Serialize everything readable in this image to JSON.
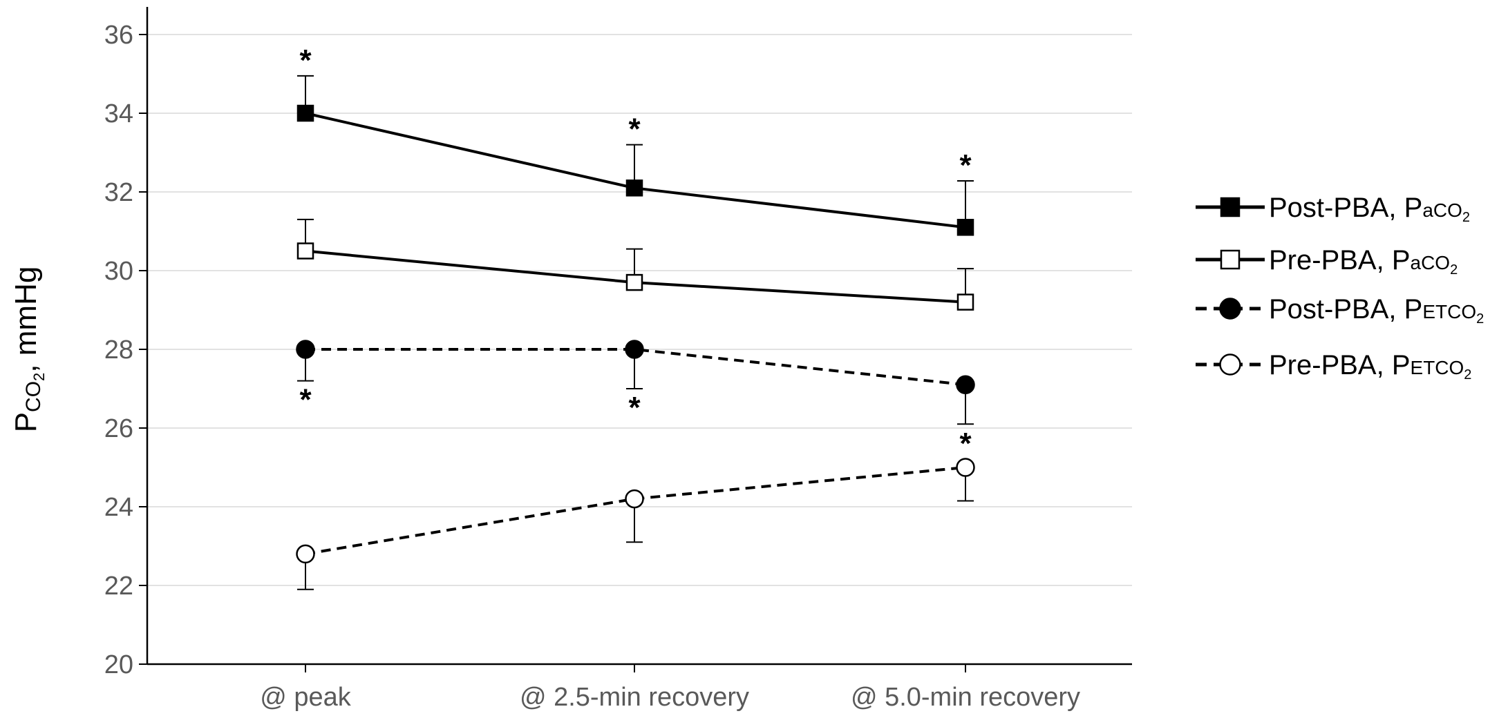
{
  "chart_data": {
    "type": "line",
    "ylabel": {
      "main": "P",
      "sub": "CO",
      "subsub": "2",
      "rest": ", mmHg"
    },
    "ylim": [
      20,
      36
    ],
    "yticks": [
      20,
      22,
      24,
      26,
      28,
      30,
      32,
      34,
      36
    ],
    "grid": true,
    "legend_position": "right",
    "categories": [
      "@ peak",
      "@ 2.5-min recovery",
      "@ 5.0-min recovery"
    ],
    "series": [
      {
        "name": "Post-PBA, PaCO2",
        "legend": {
          "main": "Post-PBA, P",
          "sub": "aCO",
          "subsub": "2"
        },
        "marker": "square",
        "filled": true,
        "dashed": false,
        "values": [
          34.0,
          32.1,
          31.1
        ],
        "errors": [
          0.95,
          1.1,
          1.18
        ],
        "error_dir": "up",
        "significance": [
          "*",
          "*",
          "*"
        ],
        "sig_pos": "above"
      },
      {
        "name": "Pre-PBA, PaCO2",
        "legend": {
          "main": "Pre-PBA, P",
          "sub": "aCO",
          "subsub": "2"
        },
        "marker": "square",
        "filled": false,
        "dashed": false,
        "values": [
          30.5,
          29.7,
          29.2
        ],
        "errors": [
          0.8,
          0.85,
          0.85
        ],
        "error_dir": "up",
        "significance": [
          "",
          "",
          ""
        ],
        "sig_pos": "above"
      },
      {
        "name": "Post-PBA, PETCO2",
        "legend": {
          "main": "Post-PBA, P",
          "sub": "ETCO",
          "subsub": "2"
        },
        "marker": "circle",
        "filled": true,
        "dashed": true,
        "values": [
          28.0,
          28.0,
          27.1
        ],
        "errors": [
          0.8,
          1.0,
          1.0
        ],
        "error_dir": "down",
        "significance": [
          "*",
          "*",
          ""
        ],
        "sig_pos": "below"
      },
      {
        "name": "Pre-PBA, PETCO2",
        "legend": {
          "main": "Pre-PBA, P",
          "sub": "ETCO",
          "subsub": "2"
        },
        "marker": "circle",
        "filled": false,
        "dashed": true,
        "values": [
          22.8,
          24.2,
          25.0
        ],
        "errors": [
          0.9,
          1.1,
          0.85
        ],
        "error_dir": "down",
        "significance": [
          "",
          "",
          "*"
        ],
        "sig_pos": "above"
      }
    ]
  },
  "colors": {
    "line": "#000000",
    "grid": "#d9d9d9",
    "axis": "#000000",
    "tick_text": "#595959"
  }
}
